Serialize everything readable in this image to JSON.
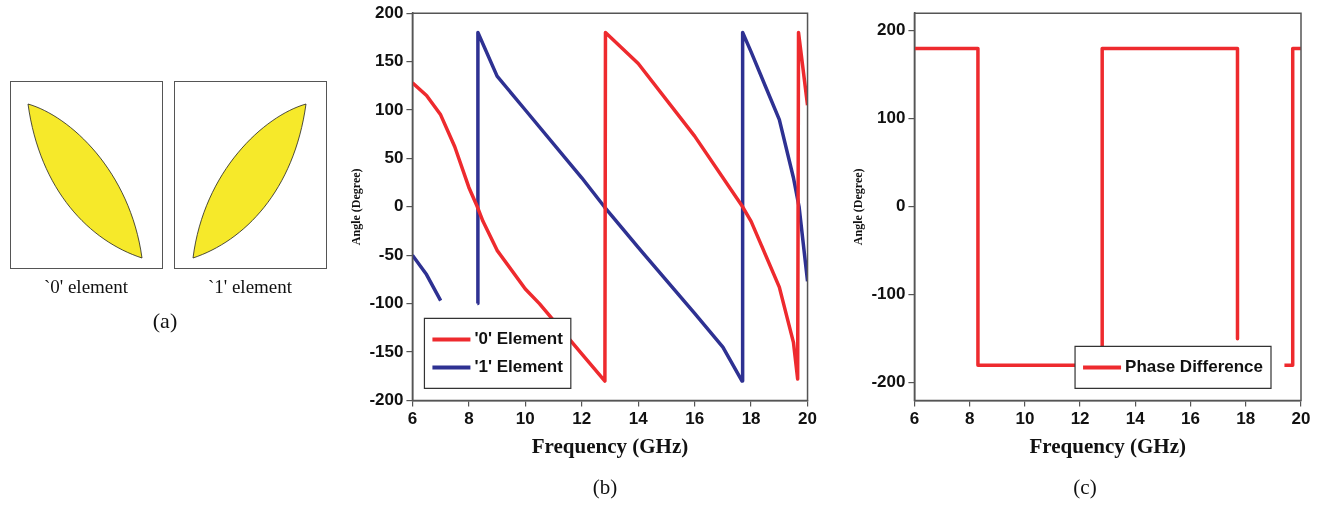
{
  "chart_data": [
    {
      "type": "other",
      "annotations": [
        "`0' element",
        "`1' element",
        "(a)"
      ]
    },
    {
      "type": "line",
      "xlabel": "Frequency (GHz)",
      "ylabel": "Angle (Degree)",
      "xlim": [
        6,
        20
      ],
      "xticks": [
        6,
        8,
        10,
        12,
        14,
        16,
        18,
        20
      ],
      "ylim": [
        -200,
        200
      ],
      "yticks": [
        -200,
        -150,
        -100,
        -50,
        0,
        50,
        100,
        150,
        200
      ],
      "legend": "bottom left",
      "line_style": "solid",
      "annotations": [
        "(b)"
      ],
      "series": [
        {
          "name": "'0' Element",
          "color": "#ee2a2e",
          "x": [
            6,
            6.5,
            7,
            7.5,
            8,
            8.3,
            8.5,
            9,
            10,
            10.5,
            12,
            12.82,
            12.84,
            14,
            16,
            17.7,
            18,
            19,
            19.5,
            19.65,
            19.68,
            20
          ],
          "values": [
            128,
            115,
            95,
            62,
            20,
            0,
            -15,
            -45,
            -85,
            -100,
            -152,
            -180,
            180,
            148,
            73,
            0,
            -15,
            -83,
            -140,
            -178,
            180,
            105
          ]
        },
        {
          "name": "'1' Element",
          "color": "#2e3192",
          "x": [
            6,
            6.5,
            7
          ],
          "values": [
            -50,
            -70,
            -97
          ]
        },
        {
          "color": "#2e3192",
          "x": [
            8.3,
            8.32,
            9,
            10,
            12,
            12.8,
            14,
            16,
            17,
            17.68,
            17.7,
            18,
            19,
            19.5,
            19.7,
            20
          ],
          "values": [
            -100,
            180,
            135,
            100,
            30,
            0,
            -42,
            -110,
            -145,
            -180,
            180,
            160,
            90,
            30,
            0,
            -77
          ]
        }
      ]
    },
    {
      "type": "line",
      "xlabel": "Frequency (GHz)",
      "ylabel": "Angle (Degree)",
      "xlim": [
        6,
        20
      ],
      "xticks": [
        6,
        8,
        10,
        12,
        14,
        16,
        18,
        20
      ],
      "ylim": [
        -220,
        220
      ],
      "yticks": [
        -200,
        -100,
        0,
        100,
        200
      ],
      "legend": "bottom right",
      "line_style": "solid",
      "annotations": [
        "(c)"
      ],
      "series": [
        {
          "name": "Phase Difference",
          "color": "#ee2a2e",
          "x": [
            6,
            8.3,
            8.3,
            12.8,
            12.8,
            17.7,
            17.7
          ],
          "values": [
            180,
            180,
            -180,
            -180,
            180,
            180,
            -150
          ]
        },
        {
          "color": "#ee2a2e",
          "x": [
            19.4,
            19.7,
            19.7,
            20
          ],
          "values": [
            -180,
            -180,
            180,
            180
          ]
        }
      ]
    }
  ]
}
